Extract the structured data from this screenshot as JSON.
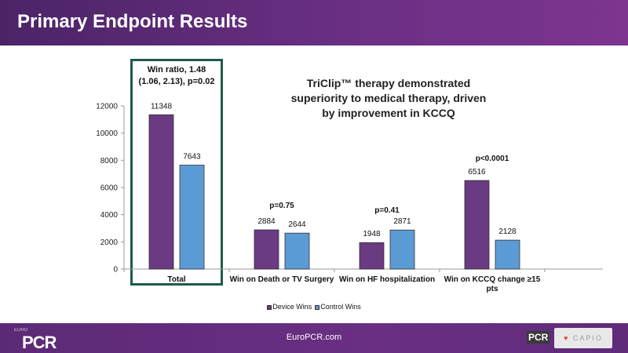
{
  "header": {
    "title": "Primary Endpoint Results"
  },
  "annotations": {
    "win_ratio": [
      "Win ratio, 1.48",
      "(1.06, 2.13), p=0.02"
    ],
    "superiority": [
      "TriClip™ therapy demonstrated",
      "superiority to medical therapy, driven",
      "by improvement in KCCQ"
    ]
  },
  "footer": {
    "site": "EuroPCR.com",
    "logo_text": "PCR",
    "logo_small": "EURO",
    "logo_right": "PCR",
    "partner_text": "CAPIO"
  },
  "colors": {
    "device": "#6a3a82",
    "control": "#5b9bd5",
    "highlight_border": "#1f5a4b"
  },
  "chart_data": {
    "type": "bar",
    "categories": [
      [
        "Total"
      ],
      [
        "Win on Death or TV Surgery"
      ],
      [
        "Win on HF hospitalization"
      ],
      [
        "Win on KCCQ change ≥15",
        "pts"
      ]
    ],
    "series": [
      {
        "name": "Device Wins",
        "values": [
          11348,
          2884,
          1948,
          6516
        ],
        "color": "#6a3a82"
      },
      {
        "name": "Control Wins",
        "values": [
          7643,
          2644,
          2871,
          2128
        ],
        "color": "#5b9bd5"
      }
    ],
    "p_values": [
      "",
      "p=0.75",
      "p=0.41",
      "p<0.0001"
    ],
    "y_ticks": [
      0,
      2000,
      4000,
      6000,
      8000,
      10000,
      12000
    ],
    "ylim": [
      0,
      12000
    ],
    "legend": {
      "position": "bottom"
    },
    "grid": false
  }
}
